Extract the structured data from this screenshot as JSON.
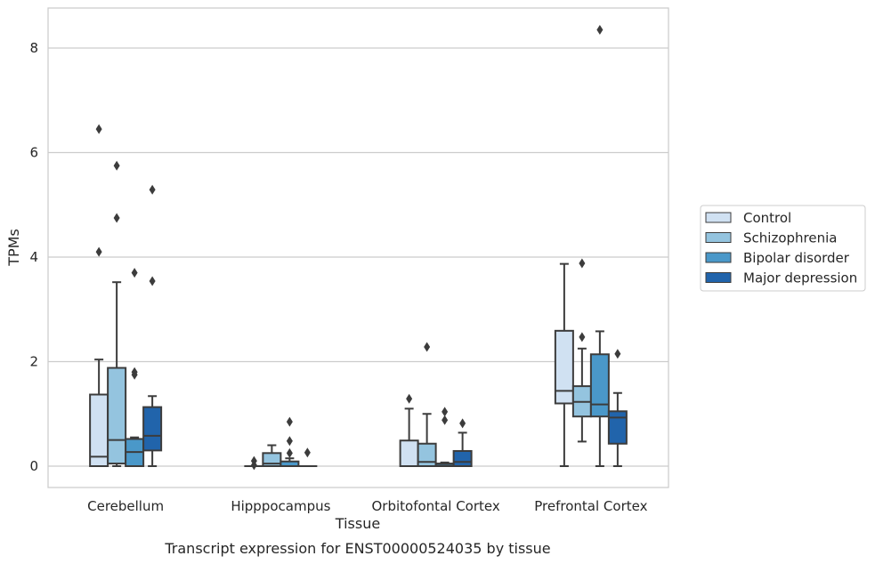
{
  "chart_data": {
    "type": "box",
    "title": "Transcript expression for ENST00000524035 by tissue",
    "xlabel": "Tissue",
    "ylabel": "TPMs",
    "ylim": [
      -0.4,
      8.75
    ],
    "yticks": [
      0,
      2,
      4,
      6,
      8
    ],
    "grid": true,
    "legend_position": "right",
    "categories": [
      "Cerebellum",
      "Hipppocampus",
      "Orbitofontal Cortex",
      "Prefrontal Cortex"
    ],
    "series": [
      {
        "name": "Control",
        "color": "#d0e1f2",
        "boxes": [
          {
            "whislo": 0,
            "q1": 0,
            "med": 0.18,
            "q3": 1.37,
            "whishi": 2.04,
            "fliers": [
              4.1,
              6.45
            ]
          },
          {
            "whislo": 0,
            "q1": 0,
            "med": 0,
            "q3": 0,
            "whishi": 0,
            "fliers": [
              0.1,
              0.02
            ]
          },
          {
            "whislo": 0,
            "q1": 0,
            "med": 0,
            "q3": 0.49,
            "whishi": 1.1,
            "fliers": [
              1.29
            ]
          },
          {
            "whislo": 0,
            "q1": 1.2,
            "med": 1.44,
            "q3": 2.59,
            "whishi": 3.87,
            "fliers": []
          }
        ]
      },
      {
        "name": "Schizophrenia",
        "color": "#94c4df",
        "boxes": [
          {
            "whislo": 0,
            "q1": 0.05,
            "med": 0.5,
            "q3": 1.88,
            "whishi": 3.52,
            "fliers": [
              4.75,
              5.75
            ]
          },
          {
            "whislo": 0,
            "q1": 0,
            "med": 0.05,
            "q3": 0.25,
            "whishi": 0.4,
            "fliers": []
          },
          {
            "whislo": 0,
            "q1": 0,
            "med": 0.08,
            "q3": 0.43,
            "whishi": 1.0,
            "fliers": [
              2.28
            ]
          },
          {
            "whislo": 0.47,
            "q1": 0.95,
            "med": 1.23,
            "q3": 1.53,
            "whishi": 2.25,
            "fliers": [
              2.47,
              3.88
            ]
          }
        ]
      },
      {
        "name": "Bipolar disorder",
        "color": "#4a98c9",
        "boxes": [
          {
            "whislo": 0,
            "q1": 0,
            "med": 0.27,
            "q3": 0.52,
            "whishi": 0.55,
            "fliers": [
              1.75,
              1.8,
              3.7
            ]
          },
          {
            "whislo": 0,
            "q1": 0,
            "med": 0,
            "q3": 0.09,
            "whishi": 0.15,
            "fliers": [
              0.25,
              0.48,
              0.85
            ]
          },
          {
            "whislo": 0,
            "q1": 0,
            "med": 0.01,
            "q3": 0.05,
            "whishi": 0.07,
            "fliers": [
              0.88,
              1.04
            ]
          },
          {
            "whislo": 0,
            "q1": 0.95,
            "med": 1.18,
            "q3": 2.14,
            "whishi": 2.58,
            "fliers": [
              8.35
            ]
          }
        ]
      },
      {
        "name": "Major depression",
        "color": "#2164ab",
        "boxes": [
          {
            "whislo": 0,
            "q1": 0.3,
            "med": 0.58,
            "q3": 1.13,
            "whishi": 1.34,
            "fliers": [
              3.54,
              5.29
            ]
          },
          {
            "whislo": 0,
            "q1": 0,
            "med": 0,
            "q3": 0,
            "whishi": 0,
            "fliers": [
              0.26
            ]
          },
          {
            "whislo": 0,
            "q1": 0,
            "med": 0.08,
            "q3": 0.29,
            "whishi": 0.64,
            "fliers": [
              0.82
            ]
          },
          {
            "whislo": 0,
            "q1": 0.43,
            "med": 0.93,
            "q3": 1.05,
            "whishi": 1.4,
            "fliers": [
              2.15
            ]
          }
        ]
      }
    ]
  }
}
